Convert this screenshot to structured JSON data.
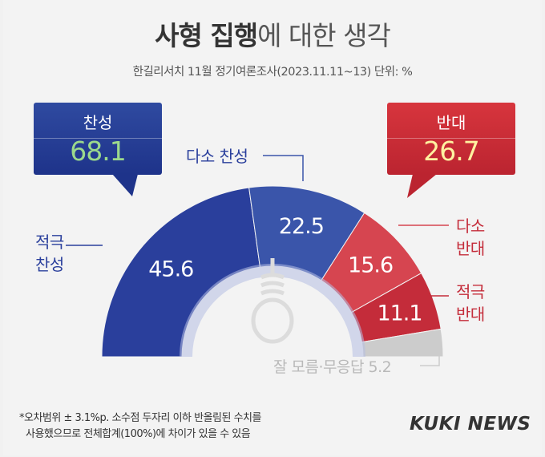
{
  "header": {
    "title_bold": "사형 집행",
    "title_rest": "에 대한 생각",
    "subtitle": "한길리서치 11월 정기여론조사(2023.11.11~13) 단위: %"
  },
  "callouts": {
    "support": {
      "label": "찬성",
      "value": "68.1"
    },
    "oppose": {
      "label": "반대",
      "value": "26.7"
    }
  },
  "side_labels": {
    "strong_support": [
      "적극",
      "찬성"
    ],
    "some_support": "다소 찬성",
    "some_oppose": [
      "다소",
      "반대"
    ],
    "strong_oppose": [
      "적극",
      "반대"
    ],
    "unknown": "잘 모름·무응답 5.2"
  },
  "chart_data": {
    "type": "pie",
    "series": [
      {
        "name": "적극 찬성",
        "value": 45.6,
        "label": "45.6"
      },
      {
        "name": "다소 찬성",
        "value": 22.5,
        "label": "22.5"
      },
      {
        "name": "다소 반대",
        "value": 15.6,
        "label": "15.6"
      },
      {
        "name": "적극 반대",
        "value": 11.1,
        "label": "11.1"
      },
      {
        "name": "잘 모름·무응답",
        "value": 5.2,
        "label": ""
      }
    ],
    "totals": {
      "찬성": 68.1,
      "반대": 26.7
    },
    "colors": [
      "#2a3f9c",
      "#3a55aa",
      "#d64550",
      "#c42c3a",
      "#cccccc"
    ]
  },
  "footer": {
    "note_line1": "*오차범위 ± 3.1%p. 소수점 두자리 이하 반올림된 수치를",
    "note_line2": "사용했으므로 전체합계(100%)에 차이가 있을 수 있음",
    "logo": "KUKI NEWS"
  }
}
